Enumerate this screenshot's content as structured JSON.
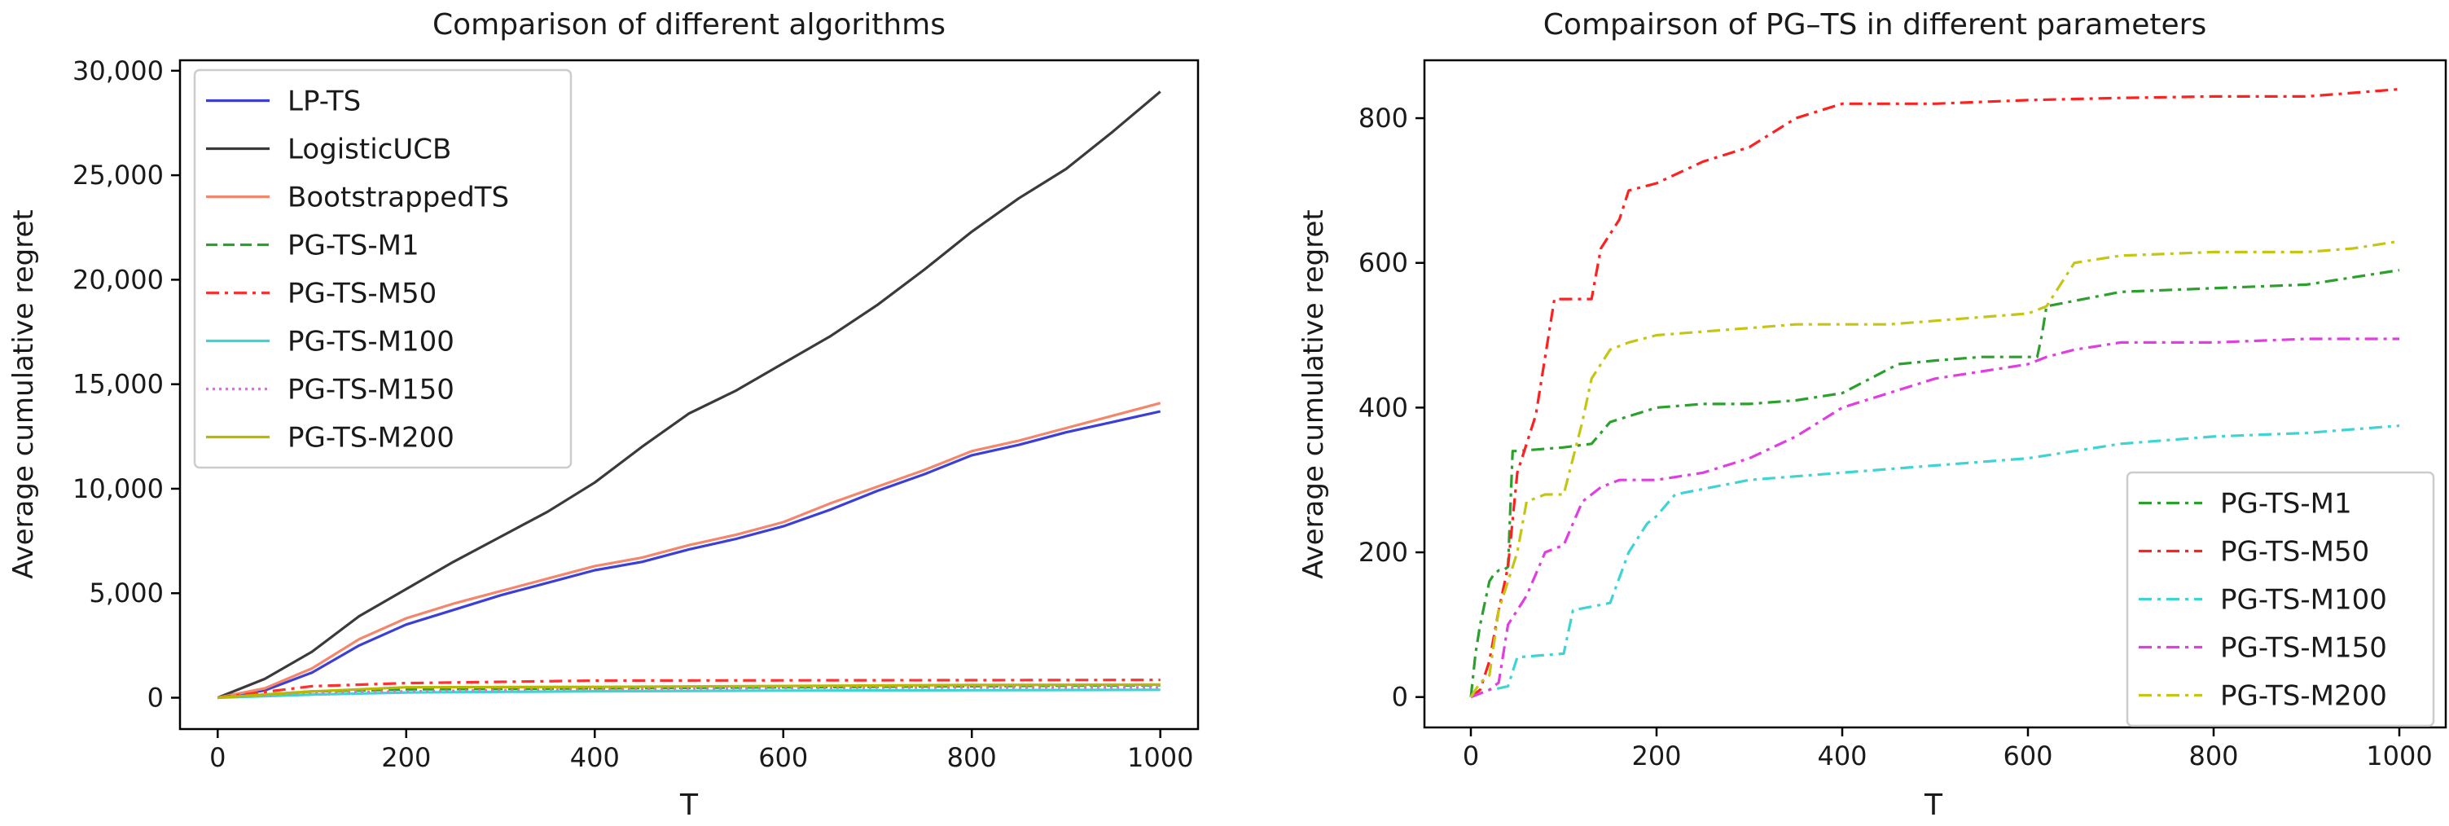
{
  "chart_data": [
    {
      "type": "line",
      "title": "Comparison of different algorithms",
      "xlabel": "T",
      "ylabel": "Average cumulative regret",
      "xlim": [
        -40,
        1040
      ],
      "ylim": [
        -1500,
        30500
      ],
      "xticks": [
        0,
        200,
        400,
        600,
        800,
        1000
      ],
      "yticks": [
        0,
        5000,
        10000,
        15000,
        20000,
        25000,
        30000
      ],
      "xtick_labels": [
        "0",
        "200",
        "400",
        "600",
        "800",
        "1000"
      ],
      "ytick_labels": [
        "0",
        "5,000",
        "10,000",
        "15,000",
        "20,000",
        "25,000",
        "30,000"
      ],
      "legend_position": "top-left",
      "series": [
        {
          "name": "LP-TS",
          "color": "#3b3fd8",
          "style": "solid",
          "x": [
            0,
            50,
            100,
            150,
            200,
            250,
            300,
            350,
            400,
            450,
            500,
            550,
            600,
            650,
            700,
            750,
            800,
            850,
            900,
            950,
            1000
          ],
          "y": [
            0,
            350,
            1200,
            2500,
            3500,
            4200,
            4900,
            5500,
            6100,
            6500,
            7100,
            7600,
            8200,
            9000,
            9900,
            10700,
            11600,
            12100,
            12700,
            13200,
            13700
          ]
        },
        {
          "name": "LogisticUCB",
          "color": "#3a3a3a",
          "style": "solid",
          "x": [
            0,
            50,
            100,
            150,
            200,
            250,
            300,
            350,
            400,
            450,
            500,
            550,
            600,
            650,
            700,
            750,
            800,
            850,
            900,
            950,
            1000
          ],
          "y": [
            0,
            900,
            2200,
            3900,
            5200,
            6500,
            7700,
            8900,
            10300,
            12000,
            13600,
            14700,
            16000,
            17300,
            18800,
            20500,
            22300,
            23900,
            25300,
            27100,
            29000
          ]
        },
        {
          "name": "BootstrappedTS",
          "color": "#f4866b",
          "style": "solid",
          "x": [
            0,
            50,
            100,
            150,
            200,
            250,
            300,
            350,
            400,
            450,
            500,
            550,
            600,
            650,
            700,
            750,
            800,
            850,
            900,
            950,
            1000
          ],
          "y": [
            0,
            450,
            1400,
            2800,
            3800,
            4500,
            5100,
            5700,
            6300,
            6700,
            7300,
            7800,
            8400,
            9300,
            10100,
            10900,
            11800,
            12300,
            12900,
            13500,
            14100
          ]
        },
        {
          "name": "PG-TS-M1",
          "color": "#2ca02c",
          "style": "dashed",
          "x": [
            0,
            100,
            200,
            400,
            600,
            800,
            1000
          ],
          "y": [
            0,
            300,
            400,
            450,
            500,
            550,
            600
          ]
        },
        {
          "name": "PG-TS-M50",
          "color": "#ff3030",
          "style": "dashdot",
          "x": [
            0,
            100,
            200,
            400,
            600,
            800,
            1000
          ],
          "y": [
            0,
            550,
            700,
            820,
            830,
            840,
            850
          ]
        },
        {
          "name": "PG-TS-M100",
          "color": "#3fd4d4",
          "style": "solid",
          "x": [
            0,
            100,
            200,
            400,
            600,
            800,
            1000
          ],
          "y": [
            0,
            150,
            250,
            310,
            340,
            360,
            380
          ]
        },
        {
          "name": "PG-TS-M150",
          "color": "#e36ce3",
          "style": "dotted",
          "x": [
            0,
            100,
            200,
            400,
            600,
            800,
            1000
          ],
          "y": [
            0,
            250,
            300,
            420,
            470,
            490,
            500
          ]
        },
        {
          "name": "PG-TS-M200",
          "color": "#b8b800",
          "style": "solid",
          "x": [
            0,
            100,
            200,
            400,
            600,
            800,
            1000
          ],
          "y": [
            0,
            300,
            500,
            520,
            560,
            610,
            630
          ]
        }
      ]
    },
    {
      "type": "line",
      "title": "Compairson of PG–TS in different parameters",
      "xlabel": "T",
      "ylabel": "Average cumulative regret",
      "xlim": [
        -50,
        1050
      ],
      "ylim": [
        -42,
        880
      ],
      "xticks": [
        0,
        200,
        400,
        600,
        800,
        1000
      ],
      "yticks": [
        0,
        200,
        400,
        600,
        800
      ],
      "xtick_labels": [
        "0",
        "200",
        "400",
        "600",
        "800",
        "1000"
      ],
      "ytick_labels": [
        "0",
        "200",
        "400",
        "600",
        "800"
      ],
      "legend_position": "lower-right",
      "series": [
        {
          "name": "PG-TS-M1",
          "color": "#2ca02c",
          "style": "dashdot",
          "x": [
            0,
            5,
            10,
            15,
            20,
            25,
            30,
            35,
            40,
            45,
            50,
            100,
            130,
            150,
            200,
            250,
            300,
            350,
            400,
            460,
            500,
            550,
            610,
            615,
            620,
            700,
            800,
            900,
            1000
          ],
          "y": [
            0,
            60,
            100,
            130,
            160,
            170,
            175,
            175,
            180,
            340,
            340,
            345,
            350,
            380,
            400,
            405,
            405,
            410,
            420,
            460,
            465,
            470,
            470,
            500,
            540,
            560,
            565,
            570,
            590
          ]
        },
        {
          "name": "PG-TS-M50",
          "color": "#ff2020",
          "style": "dashdot",
          "x": [
            0,
            10,
            20,
            30,
            40,
            50,
            70,
            90,
            100,
            130,
            140,
            150,
            160,
            170,
            200,
            250,
            300,
            350,
            400,
            500,
            600,
            700,
            800,
            900,
            950,
            1000
          ],
          "y": [
            0,
            10,
            50,
            120,
            180,
            310,
            390,
            550,
            550,
            550,
            620,
            640,
            660,
            700,
            710,
            740,
            760,
            800,
            820,
            820,
            825,
            828,
            830,
            830,
            835,
            840
          ]
        },
        {
          "name": "PG-TS-M100",
          "color": "#3fd4d4",
          "style": "dashdot",
          "x": [
            0,
            10,
            20,
            30,
            40,
            50,
            100,
            110,
            150,
            170,
            190,
            200,
            220,
            300,
            400,
            500,
            600,
            700,
            800,
            900,
            1000
          ],
          "y": [
            0,
            5,
            10,
            12,
            15,
            55,
            60,
            120,
            130,
            200,
            240,
            250,
            280,
            300,
            310,
            320,
            330,
            350,
            360,
            365,
            375
          ]
        },
        {
          "name": "PG-TS-M150",
          "color": "#e13ee1",
          "style": "dashdot",
          "x": [
            0,
            10,
            20,
            30,
            40,
            60,
            80,
            100,
            120,
            140,
            160,
            200,
            250,
            300,
            350,
            400,
            450,
            500,
            550,
            600,
            620,
            650,
            700,
            800,
            900,
            1000
          ],
          "y": [
            0,
            5,
            10,
            20,
            100,
            140,
            200,
            210,
            270,
            290,
            300,
            300,
            310,
            330,
            360,
            400,
            420,
            440,
            450,
            460,
            470,
            480,
            490,
            490,
            495,
            495
          ]
        },
        {
          "name": "PG-TS-M200",
          "color": "#c5c513",
          "style": "dashdot",
          "x": [
            0,
            10,
            20,
            30,
            40,
            50,
            60,
            80,
            100,
            120,
            130,
            150,
            170,
            200,
            250,
            300,
            350,
            400,
            450,
            500,
            550,
            600,
            620,
            650,
            700,
            800,
            900,
            950,
            1000
          ],
          "y": [
            0,
            20,
            30,
            120,
            160,
            200,
            270,
            280,
            280,
            380,
            440,
            480,
            490,
            500,
            505,
            510,
            515,
            515,
            515,
            520,
            525,
            530,
            540,
            600,
            610,
            615,
            615,
            620,
            630
          ]
        }
      ]
    }
  ]
}
